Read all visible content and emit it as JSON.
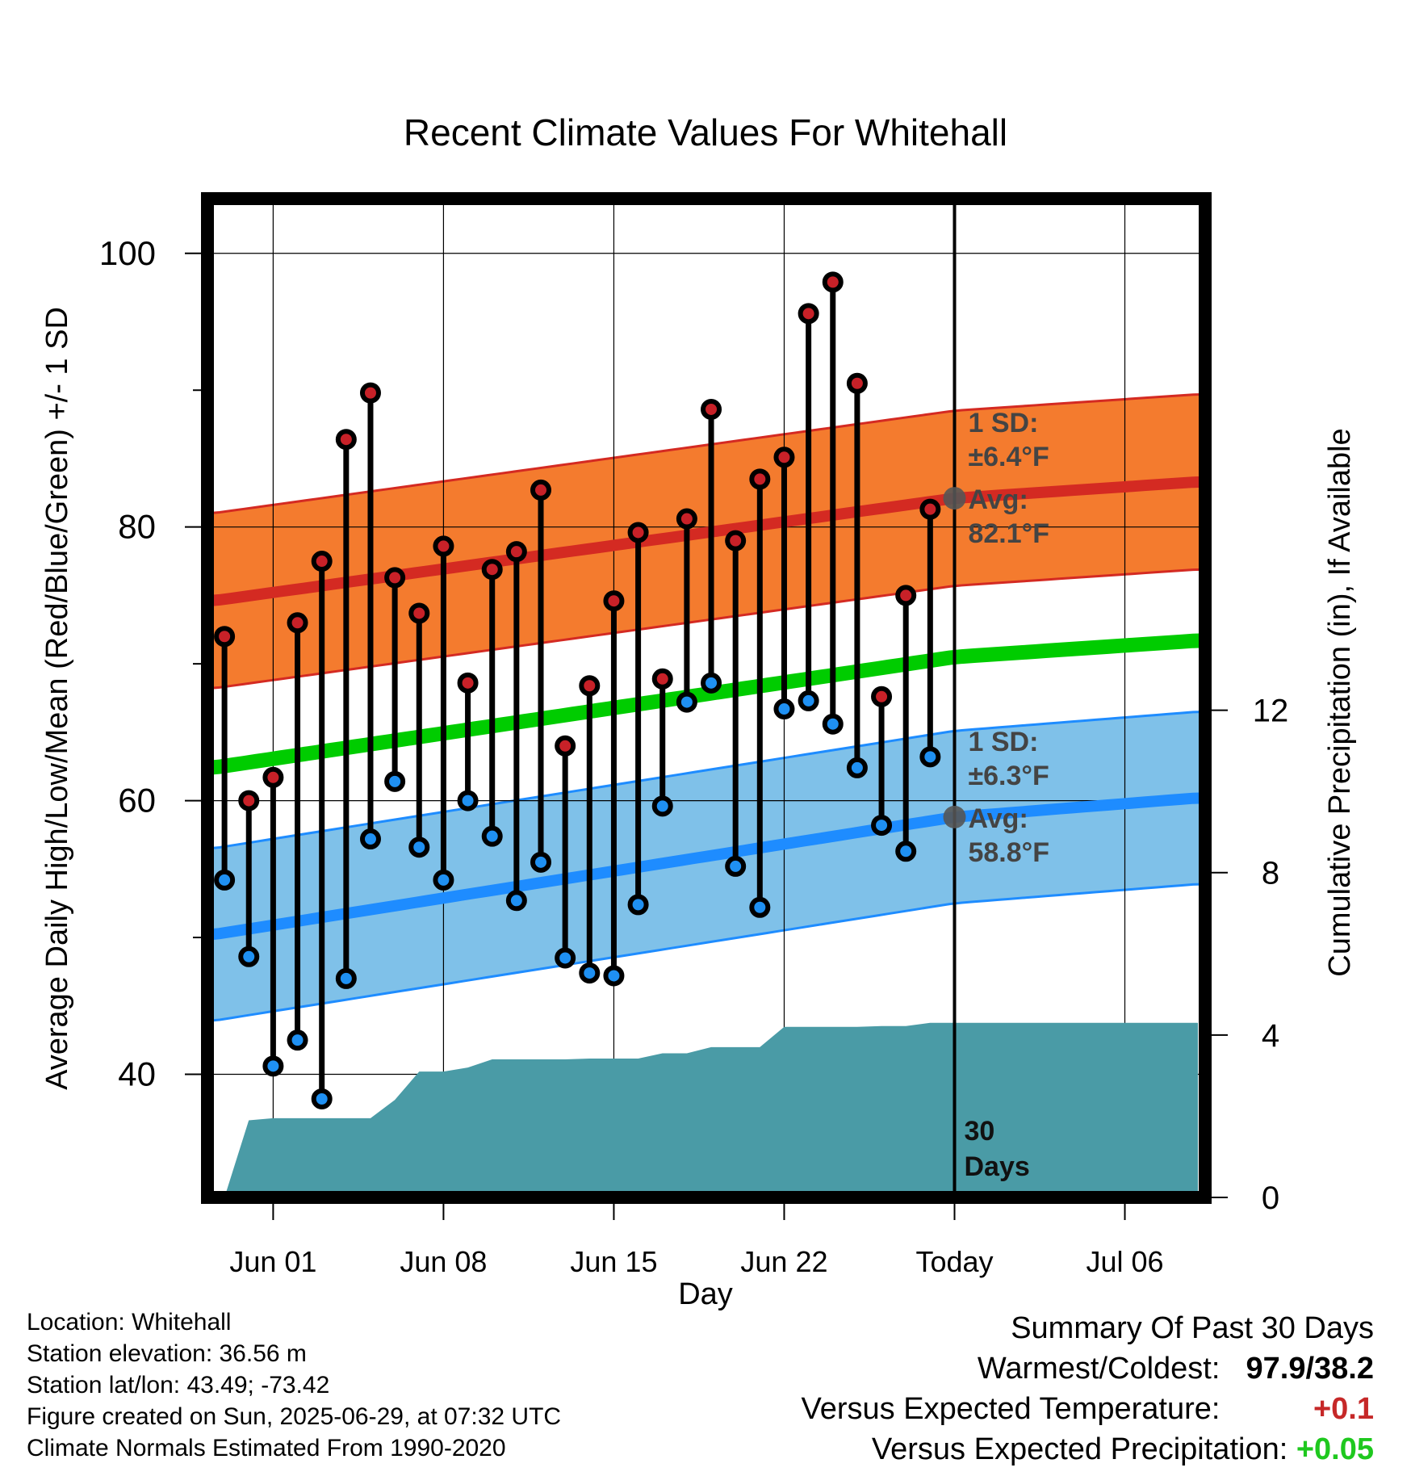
{
  "chart_data": {
    "type": "line",
    "title": "Recent Climate Values For Whitehall",
    "xlabel": "Day",
    "ylabel_left": "Average Daily High/Low/Mean (Red/Blue/Green) +/- 1 SD",
    "ylabel_right": "Cumulative Precipitation (in), If Available",
    "x_tick_labels": [
      "Jun 01",
      "Jun 08",
      "Jun 15",
      "Jun 22",
      "Today",
      "Jul 06"
    ],
    "x_tick_days": [
      1,
      8,
      15,
      22,
      29,
      36
    ],
    "x_range_days": [
      -1.7,
      39.3
    ],
    "y_left_ticks": [
      40,
      60,
      80,
      100
    ],
    "y_left_minor_ticks": [
      50,
      70,
      90
    ],
    "y_left_range": [
      31,
      104
    ],
    "y_right_ticks": [
      0,
      4,
      8,
      12
    ],
    "y_right_range": [
      0,
      24.6
    ],
    "grid": true,
    "today_day": 29,
    "today_label_line1": "30",
    "today_label_line2": "Days",
    "observed_days": [
      -1,
      0,
      1,
      2,
      3,
      4,
      5,
      6,
      7,
      8,
      9,
      10,
      11,
      12,
      13,
      14,
      15,
      16,
      17,
      18,
      19,
      20,
      21,
      22,
      23,
      24,
      25,
      26,
      27,
      28
    ],
    "daily_high": [
      72.0,
      60.0,
      61.7,
      73.0,
      77.5,
      86.4,
      89.8,
      76.3,
      73.7,
      78.6,
      68.6,
      76.9,
      78.2,
      82.7,
      64.0,
      68.4,
      74.6,
      79.6,
      68.9,
      80.6,
      88.6,
      79.0,
      83.5,
      85.1,
      95.6,
      97.9,
      90.5,
      67.6,
      75.0,
      81.3
    ],
    "daily_low": [
      54.2,
      48.6,
      40.6,
      42.5,
      38.2,
      47.0,
      57.2,
      61.4,
      56.6,
      54.2,
      60.0,
      57.4,
      52.7,
      55.5,
      48.5,
      47.4,
      47.2,
      52.4,
      59.6,
      67.2,
      68.6,
      55.2,
      52.2,
      66.7,
      67.3,
      65.6,
      62.4,
      58.2,
      56.3,
      63.2
    ],
    "normal_high": {
      "days": [
        -1.5,
        29,
        39
      ],
      "values": [
        74.6,
        82.1,
        83.3
      ],
      "sd": 6.4,
      "color": "#d42a22",
      "band_color": "#f47b2e"
    },
    "normal_low": {
      "days": [
        -1.5,
        29,
        39
      ],
      "values": [
        50.2,
        58.8,
        60.2
      ],
      "sd": 6.3,
      "color": "#1e8cff",
      "band_color": "#7fc1e9"
    },
    "normal_mean": {
      "days": [
        -1.5,
        29,
        39
      ],
      "values": [
        62.4,
        70.5,
        71.7
      ],
      "color": "#00cc00"
    },
    "high_marker_color": "#c82128",
    "low_marker_color": "#1f90f2",
    "precip_color": "#4a9ba6",
    "cumulative_precip": {
      "days": [
        -1.0,
        0.0,
        1.0,
        2.0,
        3.0,
        4.0,
        5.0,
        6.0,
        7.0,
        8.0,
        9.0,
        10.0,
        11.0,
        12.0,
        13.0,
        14.0,
        15.0,
        16.0,
        17.0,
        18.0,
        19.0,
        20.0,
        21.0,
        22.0,
        23.0,
        24.0,
        25.0,
        26.0,
        27.0,
        28.0,
        29.0,
        39.0
      ],
      "values": [
        0.0,
        1.9,
        1.95,
        1.95,
        1.95,
        1.95,
        1.95,
        2.4,
        3.1,
        3.1,
        3.2,
        3.4,
        3.4,
        3.4,
        3.4,
        3.42,
        3.42,
        3.42,
        3.55,
        3.55,
        3.7,
        3.7,
        3.7,
        4.2,
        4.2,
        4.2,
        4.2,
        4.22,
        4.22,
        4.3,
        4.3,
        4.3
      ]
    },
    "high_annotation": {
      "line1": "1 SD:",
      "line2": "±6.4°F",
      "line3": "Avg:",
      "line4": "82.1°F"
    },
    "low_annotation": {
      "line1": "1 SD:",
      "line2": "±6.3°F",
      "line3": "Avg:",
      "line4": "58.8°F"
    }
  },
  "station_info": {
    "location": "Location: Whitehall",
    "elevation": "Station elevation: 36.56 m",
    "latlon": "Station lat/lon: 43.49; -73.42",
    "created": "Figure created on Sun, 2025-06-29, at 07:32 UTC",
    "normals": "Climate Normals Estimated From 1990-2020"
  },
  "summary": {
    "title": "Summary Of Past 30 Days",
    "warm_cold_label": "Warmest/Coldest:",
    "warm_cold_value": "97.9/38.2",
    "temp_label": "Versus Expected Temperature:",
    "temp_value": "+0.1",
    "temp_color": "#c62828",
    "precip_label": "Versus Expected Precipitation:",
    "precip_value": "+0.05",
    "precip_color": "#1ec81e"
  }
}
